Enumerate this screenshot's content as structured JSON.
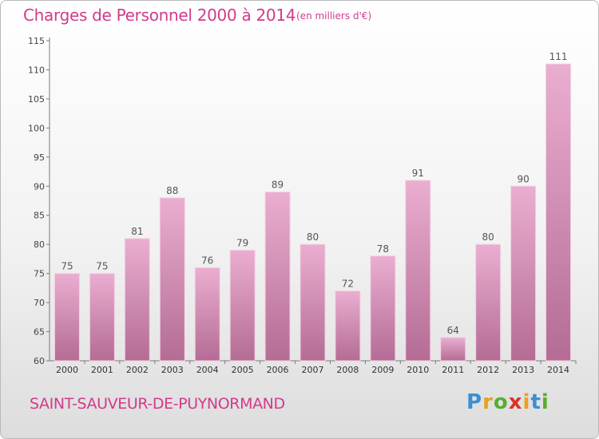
{
  "title": "Charges de Personnel 2000 à 2014",
  "subtitle": "(en milliers d'€)",
  "city": "SAINT-SAUVEUR-DE-PUYNORMAND",
  "logo": {
    "text": "Proxiti",
    "letters": [
      {
        "ch": "P",
        "color": "#3d8fd0"
      },
      {
        "ch": "r",
        "color": "#e9a21b"
      },
      {
        "ch": "o",
        "color": "#58ae2f"
      },
      {
        "ch": "x",
        "color": "#d8332a"
      },
      {
        "ch": "i",
        "color": "#e9a21b"
      },
      {
        "ch": "t",
        "color": "#3d8fd0"
      },
      {
        "ch": "i",
        "color": "#58ae2f"
      }
    ]
  },
  "colors": {
    "title": "#d33a8c",
    "bar_light": "#e8a8cc",
    "bar_dark": "#b86f98"
  },
  "chart_data": {
    "type": "bar",
    "categories": [
      "2000",
      "2001",
      "2002",
      "2003",
      "2004",
      "2005",
      "2006",
      "2007",
      "2008",
      "2009",
      "2010",
      "2011",
      "2012",
      "2013",
      "2014"
    ],
    "values": [
      75,
      75,
      81,
      88,
      76,
      79,
      89,
      80,
      72,
      78,
      91,
      64,
      80,
      90,
      111
    ],
    "ylim": [
      60,
      115
    ],
    "yticks": [
      60,
      65,
      70,
      75,
      80,
      85,
      90,
      95,
      100,
      105,
      110,
      115
    ],
    "grid": false,
    "data_labels": true
  }
}
